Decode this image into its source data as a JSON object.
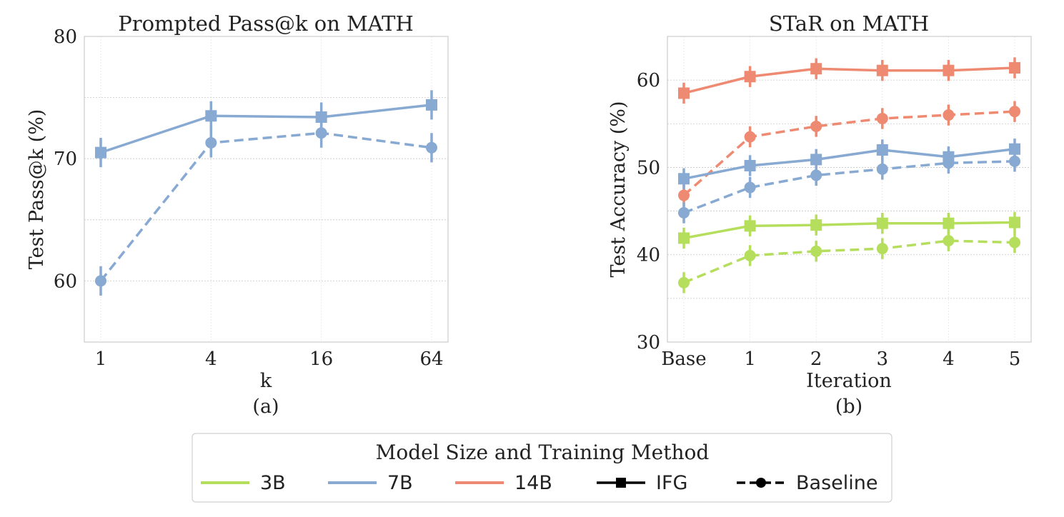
{
  "legend": {
    "title": "Model Size and Training Method",
    "items": [
      {
        "label": "3B",
        "kind": "size",
        "color": "#b5de5c"
      },
      {
        "label": "7B",
        "kind": "size",
        "color": "#87a9d2"
      },
      {
        "label": "14B",
        "kind": "size",
        "color": "#ee8a72"
      },
      {
        "label": "IFG",
        "kind": "method",
        "color": "#000000"
      },
      {
        "label": "Baseline",
        "kind": "method",
        "color": "#000000"
      }
    ]
  },
  "chart_data": [
    {
      "type": "line",
      "title": "Prompted Pass@k on MATH",
      "xlabel": "k",
      "ylabel": "Test Pass@k (%)",
      "caption": "(a)",
      "categories": [
        "1",
        "4",
        "16",
        "64"
      ],
      "ylim": [
        55,
        80
      ],
      "yticks": [
        60,
        70,
        80
      ],
      "ygrid_minor": [
        65,
        75
      ],
      "series": [
        {
          "name": "7B IFG",
          "size": "7B",
          "method": "IFG",
          "color": "#87a9d2",
          "values": [
            70.5,
            73.5,
            73.4,
            74.4
          ],
          "err": [
            1.2,
            1.2,
            1.2,
            1.2
          ]
        },
        {
          "name": "7B Baseline",
          "size": "7B",
          "method": "Baseline",
          "color": "#87a9d2",
          "values": [
            60.0,
            71.3,
            72.1,
            70.9
          ],
          "err": [
            1.2,
            1.2,
            1.2,
            1.2
          ]
        }
      ]
    },
    {
      "type": "line",
      "title": "STaR on MATH",
      "xlabel": "Iteration",
      "ylabel": "Test Accuracy (%)",
      "caption": "(b)",
      "categories": [
        "Base",
        "1",
        "2",
        "3",
        "4",
        "5"
      ],
      "ylim": [
        30,
        65
      ],
      "yticks": [
        30,
        40,
        50,
        60
      ],
      "ygrid_minor": [
        35,
        45,
        55
      ],
      "series": [
        {
          "name": "14B IFG",
          "size": "14B",
          "method": "IFG",
          "color": "#ee8a72",
          "values": [
            58.5,
            60.4,
            61.3,
            61.1,
            61.1,
            61.4
          ],
          "err": [
            1.2,
            1.2,
            1.2,
            1.2,
            1.2,
            1.2
          ]
        },
        {
          "name": "14B Baseline",
          "size": "14B",
          "method": "Baseline",
          "color": "#ee8a72",
          "values": [
            46.8,
            53.5,
            54.7,
            55.6,
            56.0,
            56.4
          ],
          "err": [
            1.2,
            1.2,
            1.2,
            1.2,
            1.2,
            1.2
          ]
        },
        {
          "name": "7B IFG",
          "size": "7B",
          "method": "IFG",
          "color": "#87a9d2",
          "values": [
            48.7,
            50.2,
            50.9,
            52.0,
            51.2,
            52.1
          ],
          "err": [
            1.2,
            1.2,
            1.2,
            1.2,
            1.2,
            1.2
          ]
        },
        {
          "name": "7B Baseline",
          "size": "7B",
          "method": "Baseline",
          "color": "#87a9d2",
          "values": [
            44.8,
            47.7,
            49.1,
            49.8,
            50.5,
            50.7
          ],
          "err": [
            1.2,
            1.2,
            1.2,
            1.2,
            1.2,
            1.2
          ]
        },
        {
          "name": "3B IFG",
          "size": "3B",
          "method": "IFG",
          "color": "#b5de5c",
          "values": [
            41.9,
            43.3,
            43.4,
            43.6,
            43.6,
            43.7
          ],
          "err": [
            1.2,
            1.2,
            1.2,
            1.2,
            1.2,
            1.2
          ]
        },
        {
          "name": "3B Baseline",
          "size": "3B",
          "method": "Baseline",
          "color": "#b5de5c",
          "values": [
            36.8,
            39.9,
            40.4,
            40.7,
            41.6,
            41.4
          ],
          "err": [
            1.2,
            1.2,
            1.2,
            1.2,
            1.2,
            1.2
          ]
        }
      ]
    }
  ]
}
